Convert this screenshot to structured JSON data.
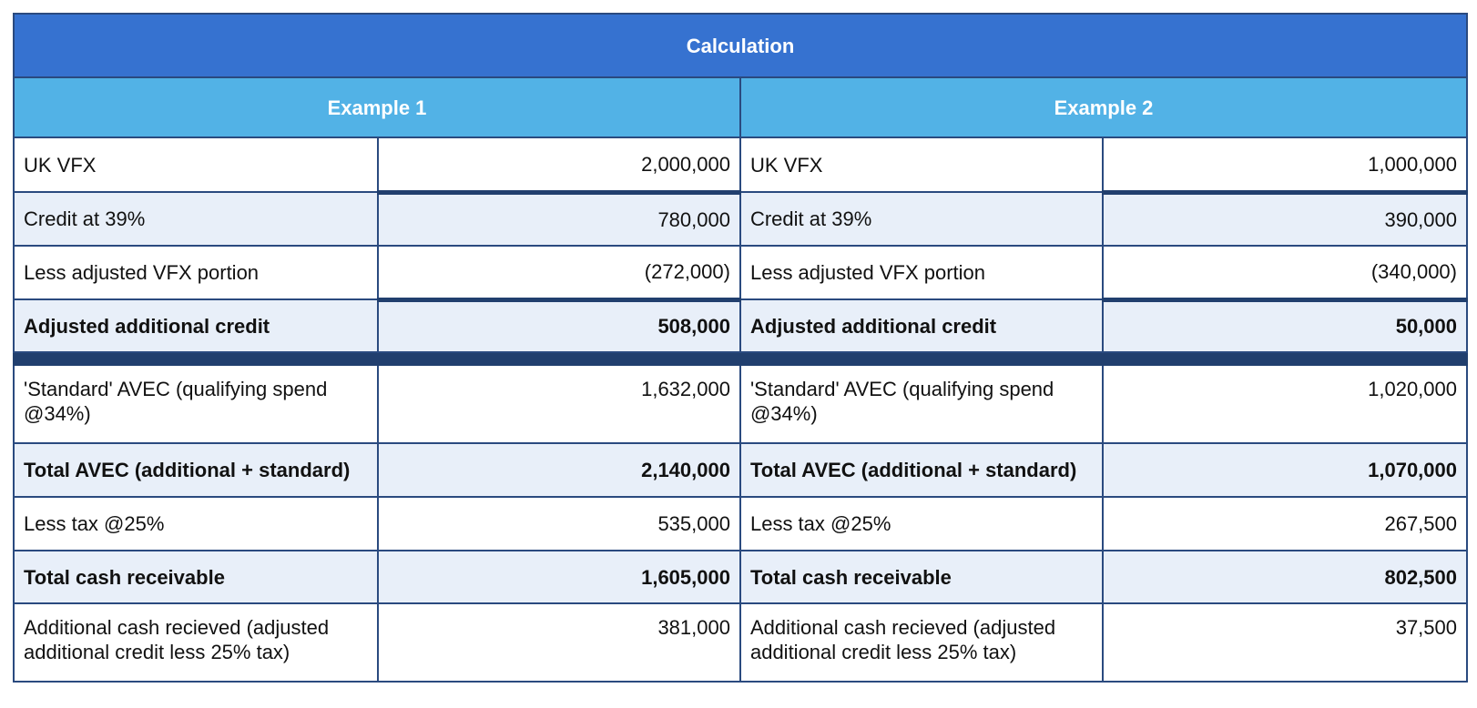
{
  "title": "Calculation",
  "examples": [
    {
      "header": "Example 1",
      "rows": [
        {
          "label": "UK VFX",
          "value": "2,000,000"
        },
        {
          "label": "Credit at 39%",
          "value": "780,000"
        },
        {
          "label": "Less adjusted VFX portion",
          "value": "(272,000)"
        },
        {
          "label": "Adjusted additional credit",
          "value": "508,000"
        },
        {
          "label": "'Standard' AVEC (qualifying spend @34%)",
          "value": "1,632,000"
        },
        {
          "label": "Total AVEC (additional + standard)",
          "value": "2,140,000"
        },
        {
          "label": "Less tax @25%",
          "value": "535,000"
        },
        {
          "label": "Total cash receivable",
          "value": "1,605,000"
        },
        {
          "label": "Additional cash recieved (adjusted additional credit less 25% tax)",
          "value": "381,000"
        }
      ]
    },
    {
      "header": "Example 2",
      "rows": [
        {
          "label": "UK VFX",
          "value": "1,000,000"
        },
        {
          "label": "Credit at 39%",
          "value": "390,000"
        },
        {
          "label": "Less adjusted VFX portion",
          "value": "(340,000)"
        },
        {
          "label": "Adjusted additional credit",
          "value": "50,000"
        },
        {
          "label": "'Standard' AVEC (qualifying spend @34%)",
          "value": "1,020,000"
        },
        {
          "label": "Total AVEC (additional + standard)",
          "value": "1,070,000"
        },
        {
          "label": "Less tax @25%",
          "value": "267,500"
        },
        {
          "label": "Total cash receivable",
          "value": "802,500"
        },
        {
          "label": "Additional cash recieved (adjusted additional credit less 25% tax)",
          "value": "37,500"
        }
      ]
    }
  ],
  "colors": {
    "title_bg": "#3672d0",
    "example_header_bg": "#52b2e6",
    "border": "#2a4a7f",
    "separator": "#213f6e",
    "shaded_row": "#e8eff9"
  }
}
